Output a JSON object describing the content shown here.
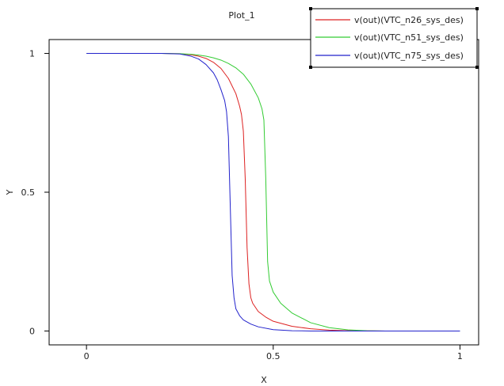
{
  "chart_data": {
    "type": "line",
    "title": "Plot_1",
    "xlabel": "X",
    "ylabel": "Y",
    "xlim": [
      -0.1,
      1.05
    ],
    "ylim": [
      -0.05,
      1.05
    ],
    "xticks": [
      0,
      0.5,
      1
    ],
    "yticks": [
      0,
      0.5,
      1
    ],
    "xtick_labels": [
      "0",
      "0.5",
      "1"
    ],
    "ytick_labels": [
      "0",
      "0.5",
      "1"
    ],
    "grid": false,
    "legend_position": "top-right",
    "series": [
      {
        "name": "v(out)(VTC_n26_sys_des)",
        "color": "#dd2222",
        "x": [
          0,
          0.1,
          0.2,
          0.25,
          0.28,
          0.3,
          0.32,
          0.34,
          0.36,
          0.38,
          0.4,
          0.41,
          0.415,
          0.42,
          0.425,
          0.43,
          0.435,
          0.44,
          0.445,
          0.45,
          0.46,
          0.48,
          0.5,
          0.55,
          0.6,
          0.65,
          0.7,
          0.75,
          0.8,
          0.9,
          1.0
        ],
        "y": [
          1,
          1,
          1,
          0.999,
          0.995,
          0.99,
          0.982,
          0.968,
          0.946,
          0.91,
          0.855,
          0.81,
          0.78,
          0.72,
          0.55,
          0.3,
          0.17,
          0.12,
          0.1,
          0.09,
          0.07,
          0.05,
          0.035,
          0.017,
          0.008,
          0.003,
          0.001,
          0.0005,
          0,
          0,
          0
        ]
      },
      {
        "name": "v(out)(VTC_n51_sys_des)",
        "color": "#33cc33",
        "x": [
          0,
          0.1,
          0.2,
          0.25,
          0.28,
          0.3,
          0.32,
          0.34,
          0.36,
          0.38,
          0.4,
          0.42,
          0.44,
          0.46,
          0.47,
          0.475,
          0.48,
          0.485,
          0.49,
          0.5,
          0.52,
          0.55,
          0.6,
          0.65,
          0.7,
          0.75,
          0.8,
          0.9,
          1.0
        ],
        "y": [
          1,
          1,
          1,
          0.999,
          0.997,
          0.994,
          0.99,
          0.984,
          0.976,
          0.964,
          0.948,
          0.925,
          0.89,
          0.84,
          0.8,
          0.76,
          0.55,
          0.25,
          0.18,
          0.14,
          0.1,
          0.065,
          0.03,
          0.012,
          0.004,
          0.001,
          0,
          0,
          0
        ]
      },
      {
        "name": "v(out)(VTC_n75_sys_des)",
        "color": "#2222cc",
        "x": [
          0,
          0.1,
          0.2,
          0.25,
          0.28,
          0.3,
          0.32,
          0.34,
          0.35,
          0.36,
          0.37,
          0.375,
          0.38,
          0.385,
          0.39,
          0.395,
          0.4,
          0.41,
          0.42,
          0.44,
          0.46,
          0.5,
          0.55,
          0.6,
          0.7,
          0.8,
          0.9,
          1.0
        ],
        "y": [
          1,
          1,
          1,
          0.998,
          0.99,
          0.98,
          0.96,
          0.93,
          0.905,
          0.87,
          0.83,
          0.79,
          0.7,
          0.45,
          0.2,
          0.12,
          0.08,
          0.055,
          0.04,
          0.025,
          0.015,
          0.005,
          0.001,
          0,
          0,
          0,
          0,
          0
        ]
      }
    ]
  }
}
